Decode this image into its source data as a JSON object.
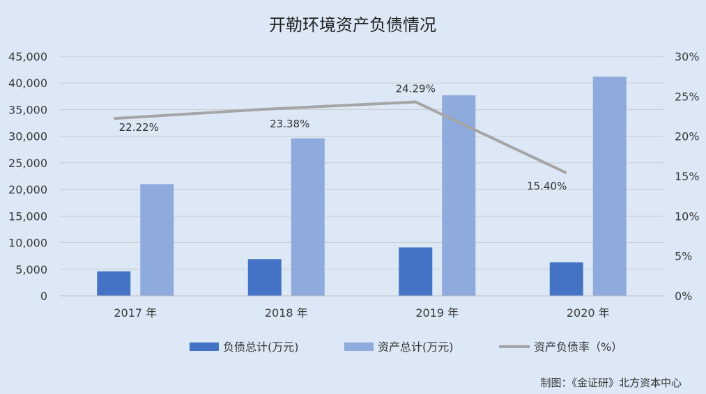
{
  "chart_data": {
    "type": "bar",
    "title": "开勒环境资产负债情况",
    "categories": [
      "2017 年",
      "2018 年",
      "2019 年",
      "2020 年"
    ],
    "series": [
      {
        "name": "负债总计(万元)",
        "kind": "bar",
        "axis": "left",
        "color": "#4472c4",
        "values": [
          4600,
          6900,
          9100,
          6300
        ]
      },
      {
        "name": "资产总计(万元)",
        "kind": "bar",
        "axis": "left",
        "color": "#8faadc",
        "values": [
          21000,
          29600,
          37700,
          41200
        ]
      },
      {
        "name": "资产负债率（%）",
        "kind": "line",
        "axis": "right",
        "color": "#a5a5a5",
        "values": [
          22.22,
          23.38,
          24.29,
          15.4
        ]
      }
    ],
    "data_labels": [
      "22.22%",
      "23.38%",
      "24.29%",
      "15.40%"
    ],
    "left_axis": {
      "ylim": [
        0,
        45000
      ],
      "ticks": [
        "0",
        "5,000",
        "10,000",
        "15,000",
        "20,000",
        "25,000",
        "30,000",
        "35,000",
        "40,000",
        "45,000"
      ]
    },
    "right_axis": {
      "ylim": [
        0,
        30
      ],
      "ticks": [
        "0%",
        "5%",
        "10%",
        "15%",
        "20%",
        "25%",
        "30%"
      ]
    },
    "grid": true,
    "legend": "bottom"
  },
  "source": "制图：《金证研》北方资本中心",
  "colors": {
    "background": "#dce8f5",
    "grid": "#c9c9c9"
  }
}
